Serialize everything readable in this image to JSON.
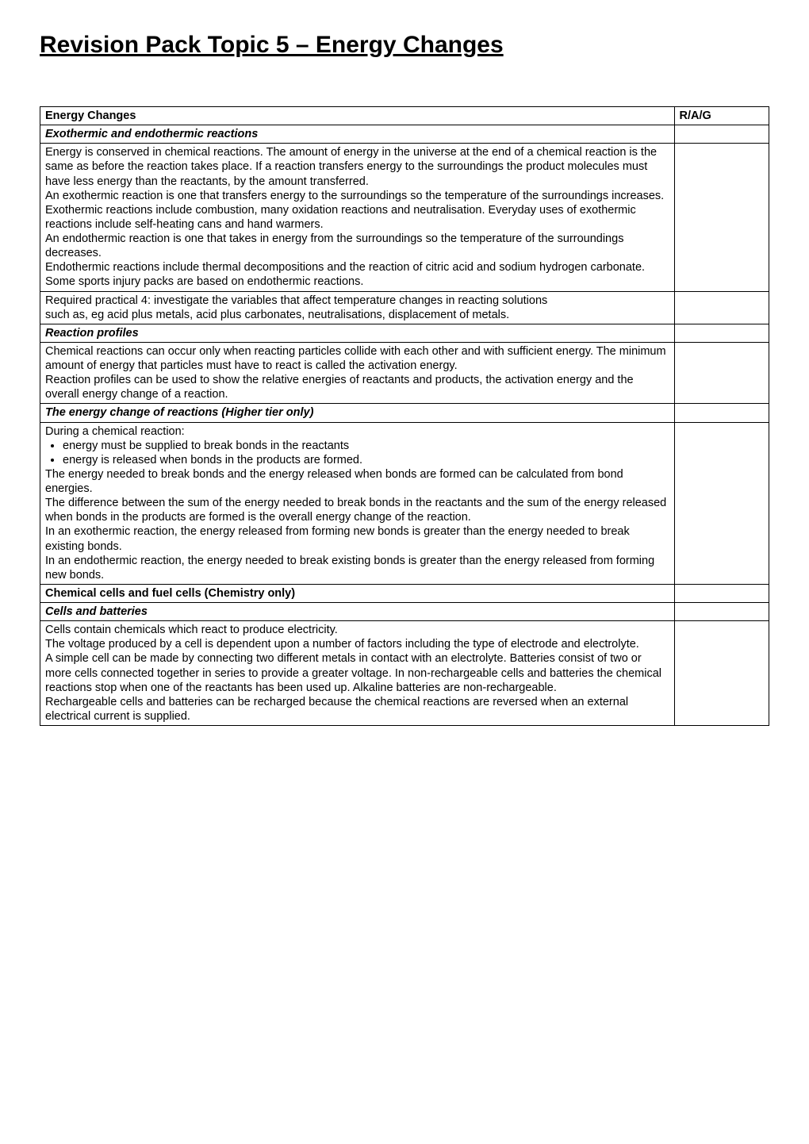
{
  "page_title": "Revision Pack Topic 5 – Energy Changes",
  "section1_heading": "Energy Changes",
  "rag_header": "R/A/G",
  "sub_exo_endo": "Exothermic and endothermic reactions",
  "exo_endo_body": "Energy is conserved in chemical reactions. The amount of energy in the universe at the end of a chemical reaction is the same as before the reaction takes place. If a reaction transfers energy to the surroundings the product molecules must have less energy than the reactants, by the amount transferred.\nAn exothermic reaction is one that transfers energy to the surroundings so the temperature of the surroundings increases.\nExothermic reactions include combustion, many oxidation reactions and neutralisation. Everyday uses of exothermic reactions include self-heating cans and hand warmers.\nAn endothermic reaction is one that takes in energy from the surroundings so the temperature of the surroundings decreases.\nEndothermic reactions include thermal decompositions and the reaction of citric acid and sodium hydrogen carbonate. Some sports injury packs are based on endothermic reactions.",
  "required_practical": "Required practical 4: investigate the variables that affect temperature changes in reacting solutions\nsuch as, eg acid plus metals, acid plus carbonates, neutralisations, displacement of metals.",
  "sub_reaction_profiles": "Reaction profiles",
  "reaction_profiles_body": "Chemical reactions can occur only when reacting particles collide with each other and with sufficient energy. The minimum amount of energy that particles must have to react is called the activation energy.\nReaction profiles can be used to show the relative energies of reactants and products, the activation energy and the overall energy change of a reaction.",
  "sub_energy_change": "The energy change of reactions (Higher tier only)",
  "energy_change_intro": "During a chemical reaction:",
  "energy_change_bullet1": "energy must be supplied to break bonds in the reactants",
  "energy_change_bullet2": "energy is released when bonds in the products are formed.",
  "energy_change_body": "The energy needed to break bonds and the energy released when bonds are formed can be calculated from bond energies.\nThe difference between the sum of the energy needed to break bonds in the reactants and the sum of the energy released when bonds in the products are formed is the overall energy change of the reaction.\nIn an exothermic reaction, the energy released from forming new bonds is greater than the energy needed to break existing bonds.\nIn an endothermic reaction, the energy needed to break existing bonds is greater than the energy released from forming new bonds.",
  "section2_heading": "Chemical cells and fuel cells (Chemistry only)",
  "sub_cells_batteries": "Cells and batteries",
  "cells_batteries_body": "Cells contain chemicals which react to produce electricity.\nThe voltage produced by a cell is dependent upon a number of factors including the type of electrode and electrolyte.\nA simple cell can be made by connecting two different metals in contact with an electrolyte. Batteries consist of two or more cells connected together in series to provide a greater voltage. In non-rechargeable cells and batteries the chemical reactions stop when one of the reactants has been used up. Alkaline batteries are non-rechargeable.\nRechargeable cells and batteries can be recharged because the chemical reactions are reversed when an external electrical current is supplied."
}
